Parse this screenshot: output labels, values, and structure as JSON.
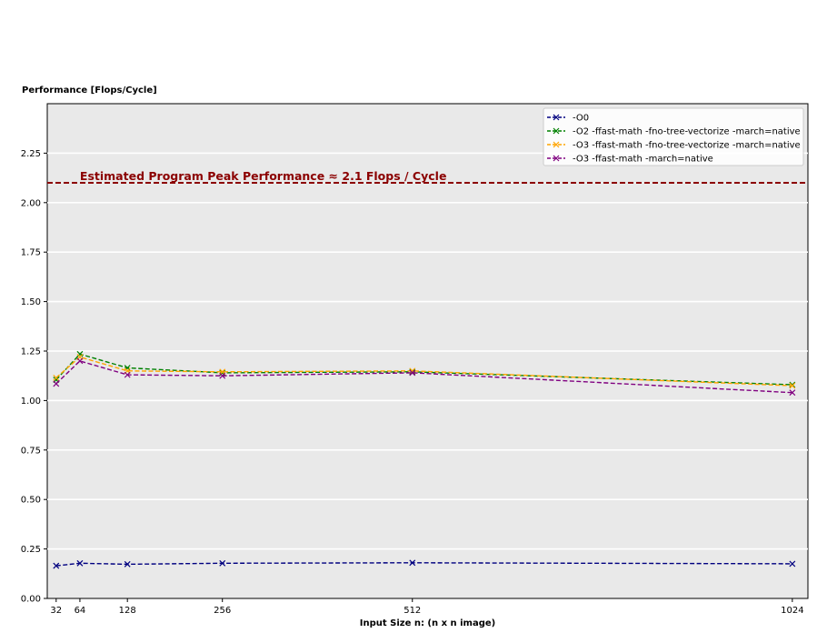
{
  "chart_data": {
    "type": "line",
    "title": "",
    "ylabel": "Performance [Flops/Cycle]",
    "xlabel": "Input Size n: (n x n image)",
    "x": [
      32,
      64,
      128,
      256,
      512,
      1024
    ],
    "x_tick_labels": [
      "32",
      "64",
      "128",
      "256",
      "512",
      "1024"
    ],
    "xlim": [
      20,
      1045
    ],
    "ylim": [
      0,
      2.5
    ],
    "y_ticks": [
      0.0,
      0.25,
      0.5,
      0.75,
      1.0,
      1.25,
      1.5,
      1.75,
      2.0,
      2.25
    ],
    "y_tick_labels": [
      "0.00",
      "0.25",
      "0.50",
      "0.75",
      "1.00",
      "1.25",
      "1.50",
      "1.75",
      "2.00",
      "2.25"
    ],
    "grid": "horizontal",
    "background": "#e9e9e9",
    "legend_position": "top-right",
    "series": [
      {
        "name": "-O0",
        "color": "#000080",
        "marker": "x",
        "linestyle": "dashed",
        "values": [
          0.165,
          0.178,
          0.173,
          0.178,
          0.18,
          0.175
        ]
      },
      {
        "name": "-O2 -ffast-math -fno-tree-vectorize -march=native",
        "color": "#008000",
        "marker": "x",
        "linestyle": "dashed",
        "values": [
          1.105,
          1.235,
          1.165,
          1.14,
          1.145,
          1.08
        ]
      },
      {
        "name": "-O3 -ffast-math -fno-tree-vectorize -march=native",
        "color": "#ffa500",
        "marker": "x",
        "linestyle": "dashed",
        "values": [
          1.115,
          1.22,
          1.15,
          1.145,
          1.15,
          1.075
        ]
      },
      {
        "name": "-O3 -ffast-math -march=native",
        "color": "#800080",
        "marker": "x",
        "linestyle": "dashed",
        "values": [
          1.085,
          1.2,
          1.13,
          1.125,
          1.14,
          1.04
        ]
      }
    ],
    "reference_line": {
      "y": 2.1,
      "color": "#8b0000",
      "label": "Estimated Program Peak Performance ≈ 2.1 Flops / Cycle"
    }
  }
}
